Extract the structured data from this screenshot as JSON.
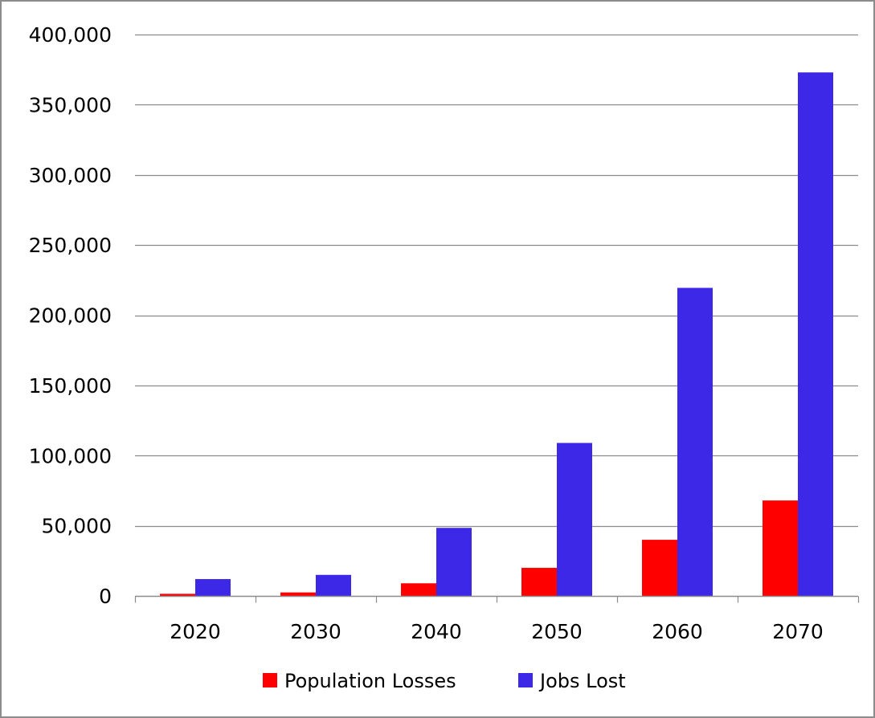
{
  "chart_data": {
    "type": "bar",
    "title": "",
    "xlabel": "",
    "ylabel": "",
    "categories": [
      "2020",
      "2030",
      "2040",
      "2050",
      "2060",
      "2070"
    ],
    "series": [
      {
        "name": "Population Losses",
        "color": "#ff0000",
        "values": [
          1500,
          2500,
          9000,
          20000,
          40000,
          68000
        ]
      },
      {
        "name": "Jobs Lost",
        "color": "#3c28e6",
        "values": [
          12000,
          15000,
          48500,
          109000,
          219500,
          373000
        ]
      }
    ],
    "ylim": [
      0,
      400000
    ],
    "yticks": [
      0,
      50000,
      100000,
      150000,
      200000,
      250000,
      300000,
      350000,
      400000
    ],
    "ytick_labels": [
      "0",
      "50,000",
      "100,000",
      "150,000",
      "200,000",
      "250,000",
      "300,000",
      "350,000",
      "400,000"
    ],
    "grid": "horizontal",
    "gridline_color": "#8c8c8c",
    "legend_position": "bottom"
  }
}
